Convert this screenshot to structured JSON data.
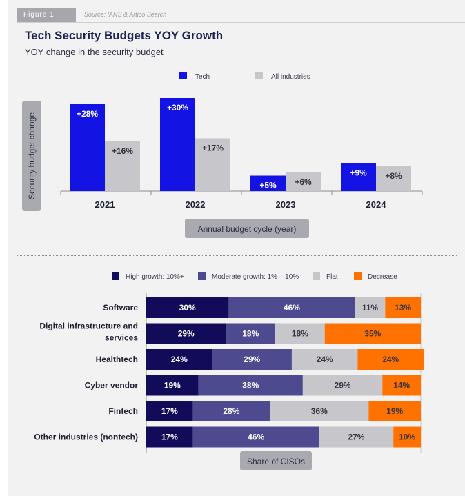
{
  "figure_label": "Figure 1",
  "source": "Source: IANS & Artico Search",
  "chart_data": [
    {
      "type": "bar",
      "title": "Tech Security Budgets YOY Growth",
      "subtitle": "YOY change in the security budget",
      "ylabel": "Security budget change",
      "xlabel": "Annual budget cycle (year)",
      "categories": [
        "2021",
        "2022",
        "2023",
        "2024"
      ],
      "ylim": [
        0,
        30
      ],
      "series": [
        {
          "name": "Tech",
          "color": "#1313e3",
          "values": [
            28,
            30,
            5,
            9
          ],
          "labels": [
            "+28%",
            "+30%",
            "+5%",
            "+9%"
          ]
        },
        {
          "name": "All industries",
          "color": "#c7c7cb",
          "values": [
            16,
            17,
            6,
            8
          ],
          "labels": [
            "+16%",
            "+17%",
            "+6%",
            "+8%"
          ]
        }
      ],
      "legend": "top-center"
    },
    {
      "type": "bar",
      "orientation": "horizontal-stacked",
      "xlabel": "Share of CISOs",
      "categories": [
        "Software",
        "Digital infrastructure and services",
        "Healthtech",
        "Cyber vendor",
        "Fintech",
        "Other industries (nontech)"
      ],
      "category_lines": [
        [
          "Software"
        ],
        [
          "Digital infrastructure and",
          "services"
        ],
        [
          "Healthtech"
        ],
        [
          "Cyber vendor"
        ],
        [
          "Fintech"
        ],
        [
          "Other industries (nontech)"
        ]
      ],
      "xlim": [
        0,
        100
      ],
      "series": [
        {
          "name": "High growth: 10%+",
          "color": "#120b5a",
          "text_color": "#ffffff",
          "values": [
            30,
            29,
            24,
            19,
            17,
            17
          ]
        },
        {
          "name": "Moderate growth: 1% – 10%",
          "color": "#4e4a90",
          "text_color": "#ffffff",
          "values": [
            46,
            18,
            29,
            38,
            28,
            46
          ]
        },
        {
          "name": "Flat",
          "color": "#c7c7cb",
          "text_color": "#333340",
          "values": [
            11,
            18,
            24,
            29,
            36,
            27
          ]
        },
        {
          "name": "Decrease",
          "color": "#ff7200",
          "text_color": "#333340",
          "values": [
            13,
            35,
            24,
            14,
            19,
            10
          ]
        }
      ],
      "legend": "top"
    }
  ]
}
